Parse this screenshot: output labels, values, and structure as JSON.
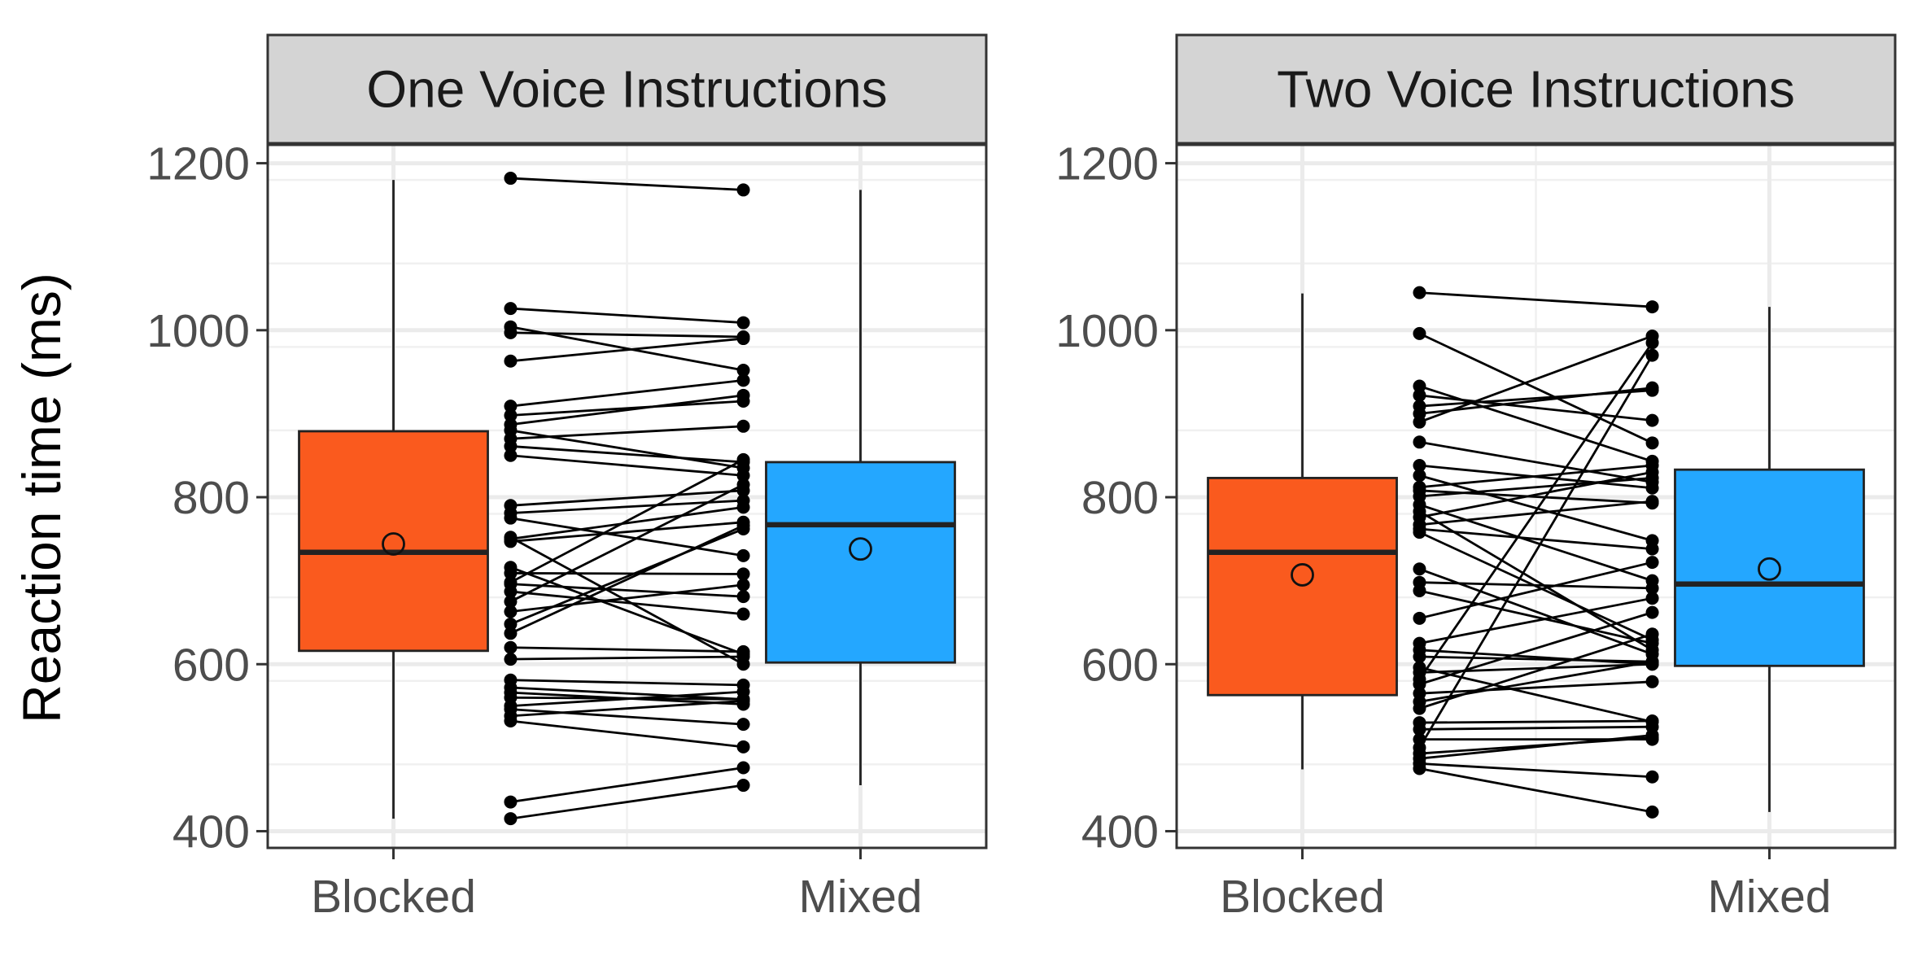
{
  "chart_data": {
    "type": "boxplot",
    "ylabel": "Reaction time (ms)",
    "xlabel": "",
    "ylim": [
      380,
      1222
    ],
    "y_ticks": [
      400,
      600,
      800,
      1000,
      1200
    ],
    "categories": [
      "Blocked",
      "Mixed"
    ],
    "grid": true,
    "colors": {
      "Blocked": "#FA5A1E",
      "Mixed": "#24A7FF"
    },
    "facets": [
      {
        "title": "One Voice Instructions",
        "boxes": [
          {
            "category": "Blocked",
            "whisker_low": 415,
            "q1": 616,
            "median": 734,
            "q3": 879,
            "whisker_high": 1180,
            "mean": 744
          },
          {
            "category": "Mixed",
            "whisker_low": 455,
            "q1": 602,
            "median": 767,
            "q3": 842,
            "whisker_high": 1168,
            "mean": 738
          }
        ],
        "paired_points": [
          [
            1182,
            1168
          ],
          [
            1026,
            1009
          ],
          [
            1004,
            952
          ],
          [
            997,
            992
          ],
          [
            963,
            990
          ],
          [
            909,
            940
          ],
          [
            898,
            915
          ],
          [
            887,
            922
          ],
          [
            880,
            835
          ],
          [
            870,
            885
          ],
          [
            861,
            842
          ],
          [
            850,
            826
          ],
          [
            790,
            808
          ],
          [
            781,
            796
          ],
          [
            775,
            730
          ],
          [
            752,
            600
          ],
          [
            750,
            788
          ],
          [
            747,
            770
          ],
          [
            716,
            612
          ],
          [
            709,
            708
          ],
          [
            698,
            845
          ],
          [
            696,
            681
          ],
          [
            687,
            660
          ],
          [
            675,
            815
          ],
          [
            663,
            695
          ],
          [
            648,
            762
          ],
          [
            637,
            766
          ],
          [
            620,
            615
          ],
          [
            606,
            609
          ],
          [
            581,
            575
          ],
          [
            572,
            558
          ],
          [
            566,
            552
          ],
          [
            560,
            558
          ],
          [
            550,
            567
          ],
          [
            546,
            528
          ],
          [
            538,
            556
          ],
          [
            532,
            501
          ],
          [
            435,
            476
          ],
          [
            415,
            455
          ]
        ]
      },
      {
        "title": "Two Voice Instructions",
        "boxes": [
          {
            "category": "Blocked",
            "whisker_low": 474,
            "q1": 563,
            "median": 734,
            "q3": 823,
            "whisker_high": 1044,
            "mean": 707
          },
          {
            "category": "Mixed",
            "whisker_low": 423,
            "q1": 598,
            "median": 696,
            "q3": 833,
            "whisker_high": 1028,
            "mean": 714
          }
        ],
        "paired_points": [
          [
            1045,
            1028
          ],
          [
            996,
            865
          ],
          [
            933,
            843
          ],
          [
            922,
            892
          ],
          [
            909,
            928
          ],
          [
            900,
            931
          ],
          [
            890,
            993
          ],
          [
            866,
            818
          ],
          [
            838,
            811
          ],
          [
            826,
            748
          ],
          [
            812,
            838
          ],
          [
            808,
            793
          ],
          [
            801,
            823
          ],
          [
            791,
            700
          ],
          [
            783,
            617
          ],
          [
            776,
            830
          ],
          [
            767,
            795
          ],
          [
            762,
            738
          ],
          [
            758,
            629
          ],
          [
            714,
            612
          ],
          [
            698,
            691
          ],
          [
            688,
            625
          ],
          [
            655,
            722
          ],
          [
            625,
            679
          ],
          [
            617,
            600
          ],
          [
            609,
            603
          ],
          [
            596,
            531
          ],
          [
            590,
            600
          ],
          [
            582,
            985
          ],
          [
            576,
            662
          ],
          [
            565,
            579
          ],
          [
            555,
            603
          ],
          [
            547,
            636
          ],
          [
            530,
            532
          ],
          [
            522,
            525
          ],
          [
            510,
            510
          ],
          [
            500,
            970
          ],
          [
            493,
            512
          ],
          [
            487,
            515
          ],
          [
            481,
            465
          ],
          [
            475,
            423
          ]
        ]
      }
    ]
  }
}
